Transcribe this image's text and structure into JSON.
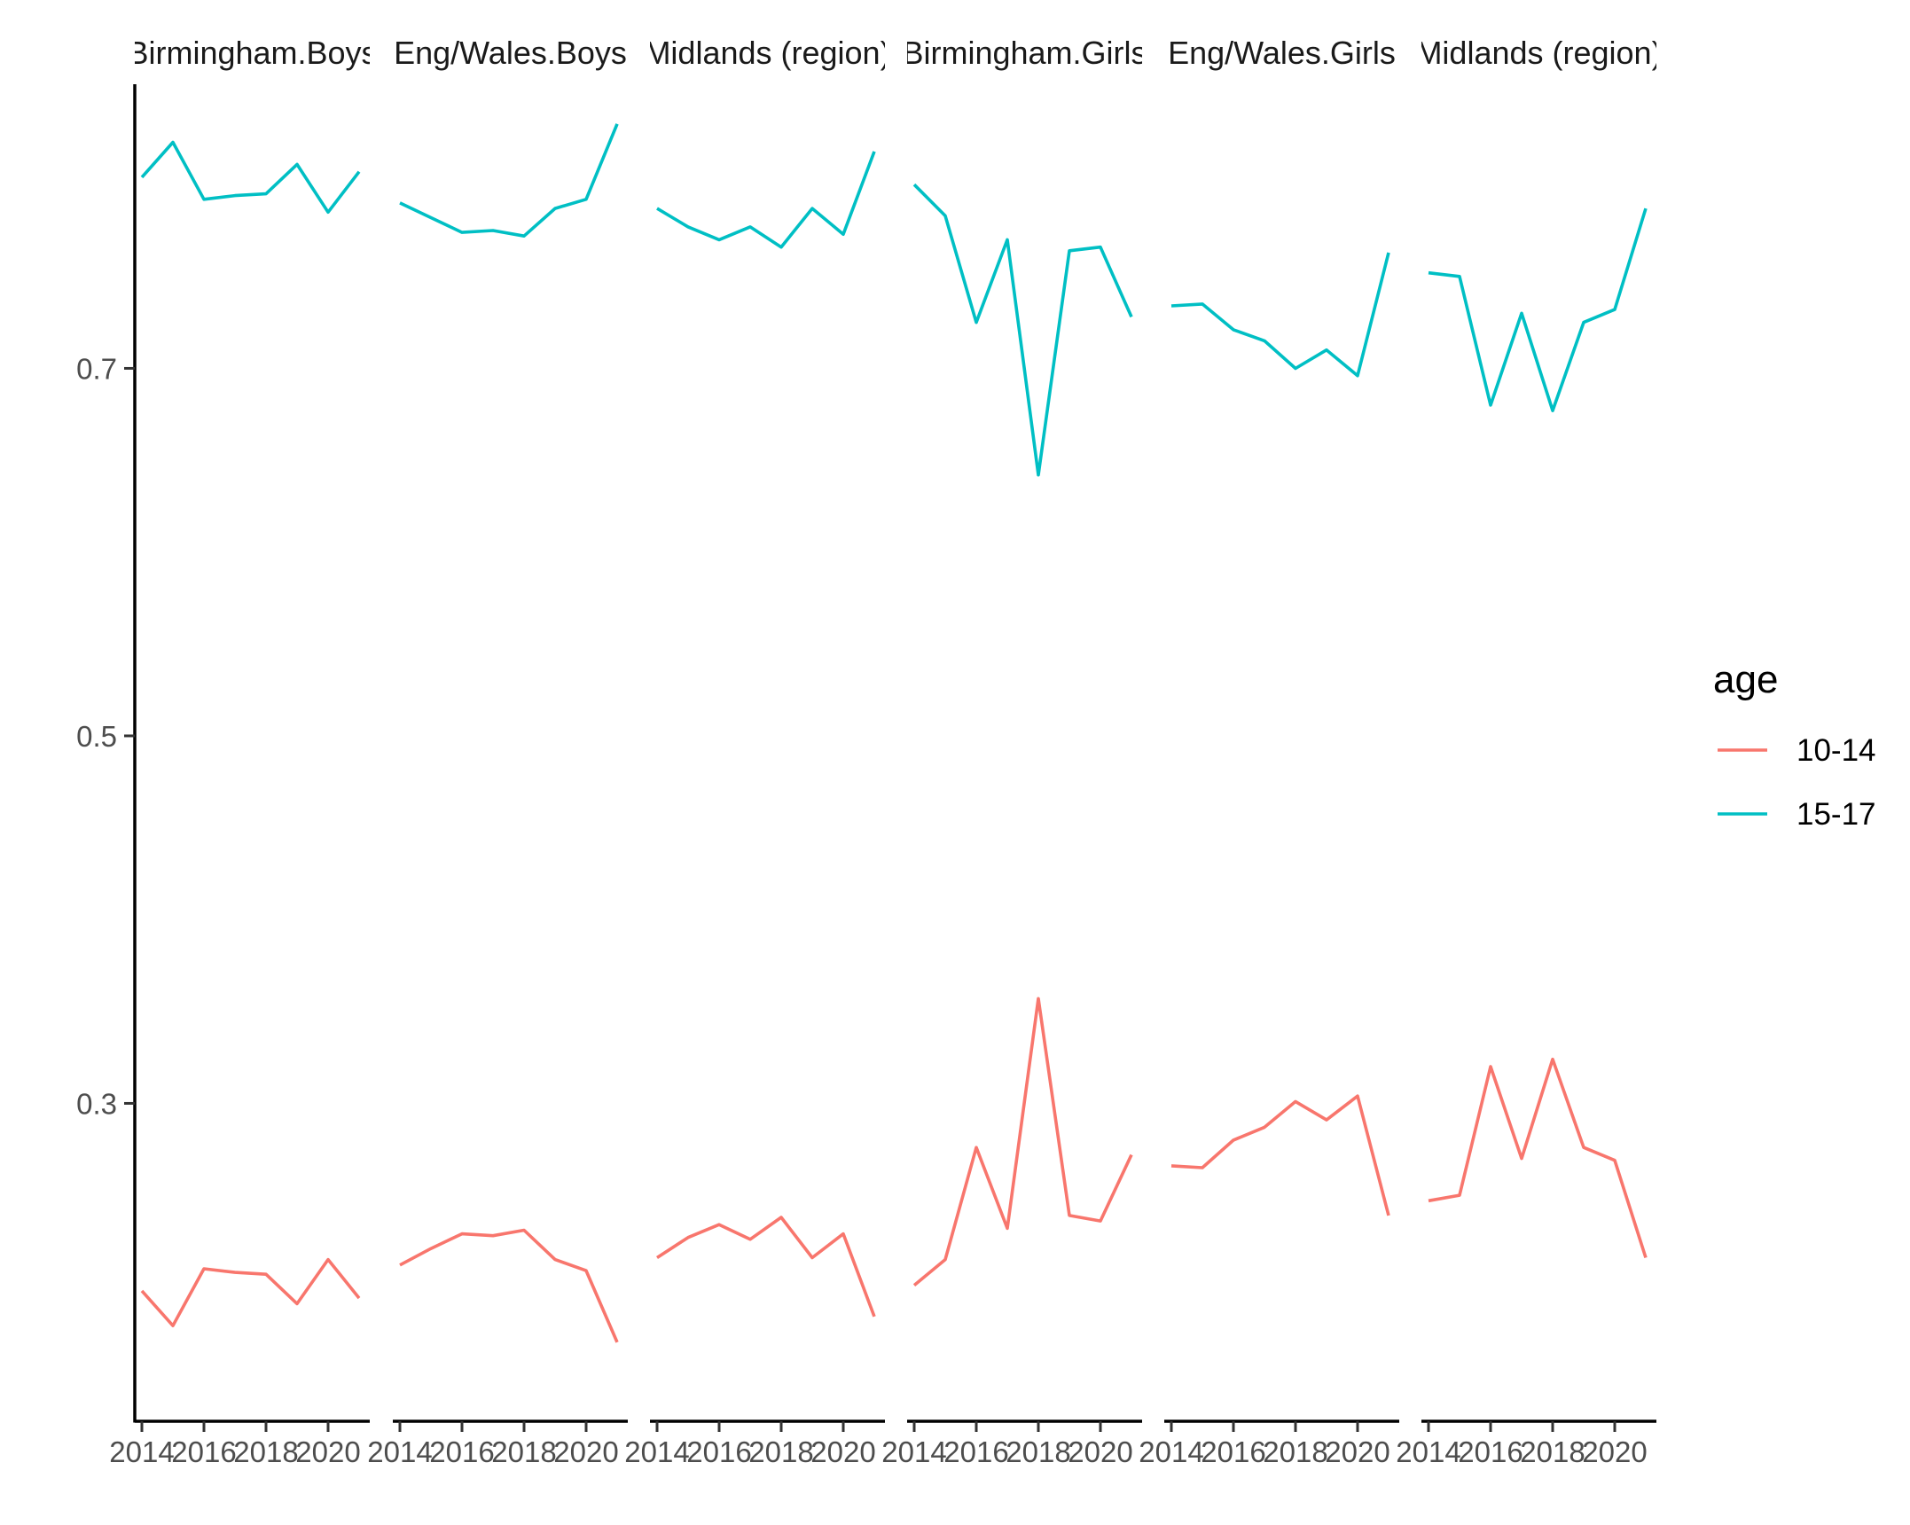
{
  "chart_data": {
    "type": "line",
    "facets": [
      "Birmingham.Boys",
      "Eng/Wales.Boys",
      "Midlands (region)",
      "Birmingham.Girls",
      "Eng/Wales.Girls",
      "Midlands (region)"
    ],
    "x": [
      2014,
      2015,
      2016,
      2017,
      2018,
      2019,
      2020,
      2021
    ],
    "x_ticks": [
      "2014",
      "2016",
      "2018",
      "2020"
    ],
    "y_ticks": [
      "0.3",
      "0.5",
      "0.7"
    ],
    "ylim": [
      0.127,
      0.858
    ],
    "legend_title": "age",
    "legend_position": "right",
    "grid": false,
    "colors": {
      "10-14": "#F8766D",
      "15-17": "#00BFC4"
    },
    "series": [
      {
        "name": "10-14",
        "facets": [
          [
            0.198,
            0.179,
            0.21,
            0.208,
            0.207,
            0.191,
            0.215,
            0.194
          ],
          [
            0.212,
            0.221,
            0.229,
            0.228,
            0.231,
            0.215,
            0.209,
            0.17
          ],
          [
            0.216,
            0.227,
            0.234,
            0.226,
            0.238,
            0.216,
            0.229,
            0.184
          ],
          [
            0.201,
            0.215,
            0.276,
            0.232,
            0.357,
            0.239,
            0.236,
            0.272
          ],
          [
            0.266,
            0.265,
            0.28,
            0.287,
            0.301,
            0.291,
            0.304,
            0.239
          ],
          [
            0.247,
            0.25,
            0.32,
            0.27,
            0.324,
            0.276,
            0.269,
            0.216
          ]
        ]
      },
      {
        "name": "15-17",
        "facets": [
          [
            0.804,
            0.823,
            0.792,
            0.794,
            0.795,
            0.811,
            0.785,
            0.807
          ],
          [
            0.79,
            0.782,
            0.774,
            0.775,
            0.772,
            0.787,
            0.792,
            0.833
          ],
          [
            0.787,
            0.777,
            0.77,
            0.777,
            0.766,
            0.787,
            0.773,
            0.818
          ],
          [
            0.8,
            0.783,
            0.725,
            0.77,
            0.642,
            0.764,
            0.766,
            0.728
          ],
          [
            0.734,
            0.735,
            0.721,
            0.715,
            0.7,
            0.71,
            0.696,
            0.763
          ],
          [
            0.752,
            0.75,
            0.68,
            0.73,
            0.677,
            0.725,
            0.732,
            0.787
          ]
        ]
      }
    ]
  }
}
